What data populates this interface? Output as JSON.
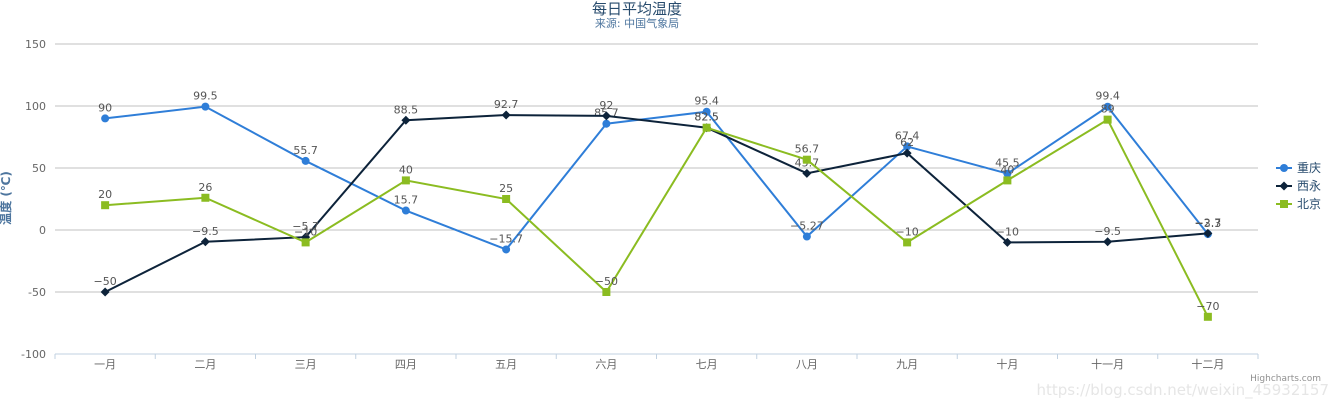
{
  "chart_data": {
    "type": "line",
    "title": "每日平均温度",
    "subtitle": "来源: 中国气象局",
    "ylabel": "温度 (℃)",
    "xlabel": "",
    "categories": [
      "一月",
      "二月",
      "三月",
      "四月",
      "五月",
      "六月",
      "七月",
      "八月",
      "九月",
      "十月",
      "十一月",
      "十二月"
    ],
    "ylim": [
      -100,
      150
    ],
    "yticks": [
      -100,
      -50,
      0,
      50,
      100,
      150
    ],
    "grid": true,
    "legend_position": "right",
    "series": [
      {
        "name": "重庆",
        "color": "#2f7ed8",
        "marker": "circle",
        "values": [
          90,
          99.5,
          55.7,
          15.7,
          -15.7,
          85.7,
          95.4,
          -5.27,
          67.4,
          45.5,
          99.4,
          -3.3
        ],
        "labels": [
          "90",
          "99.5",
          "55.7",
          "15.7",
          "−15.7",
          "85.7",
          "95.4",
          "−5.27",
          "67.4",
          "45.5",
          "99.4",
          "−3.3"
        ]
      },
      {
        "name": "西永",
        "color": "#0d233a",
        "marker": "diamond",
        "values": [
          -50,
          -9.5,
          -5.7,
          88.5,
          92.7,
          92,
          82.5,
          45.7,
          62,
          -10,
          -9.5,
          -2.7
        ],
        "labels": [
          "−50",
          "−9.5",
          "−5.7",
          "88.5",
          "92.7",
          "92",
          "82.5",
          "45.7",
          "62",
          "−10",
          "−9.5",
          "−2.7"
        ]
      },
      {
        "name": "北京",
        "color": "#8bbc21",
        "marker": "square",
        "values": [
          20,
          26,
          -10,
          40,
          25,
          -50,
          82.5,
          56.7,
          -10,
          40,
          89,
          -70
        ],
        "labels": [
          "20",
          "26",
          "−10",
          "40",
          "25",
          "−50",
          "82.5",
          "56.7",
          "−10",
          "40",
          "89",
          "−70"
        ]
      }
    ]
  },
  "credits": "Highcharts.com",
  "watermark": "https://blog.csdn.net/weixin_45932157"
}
